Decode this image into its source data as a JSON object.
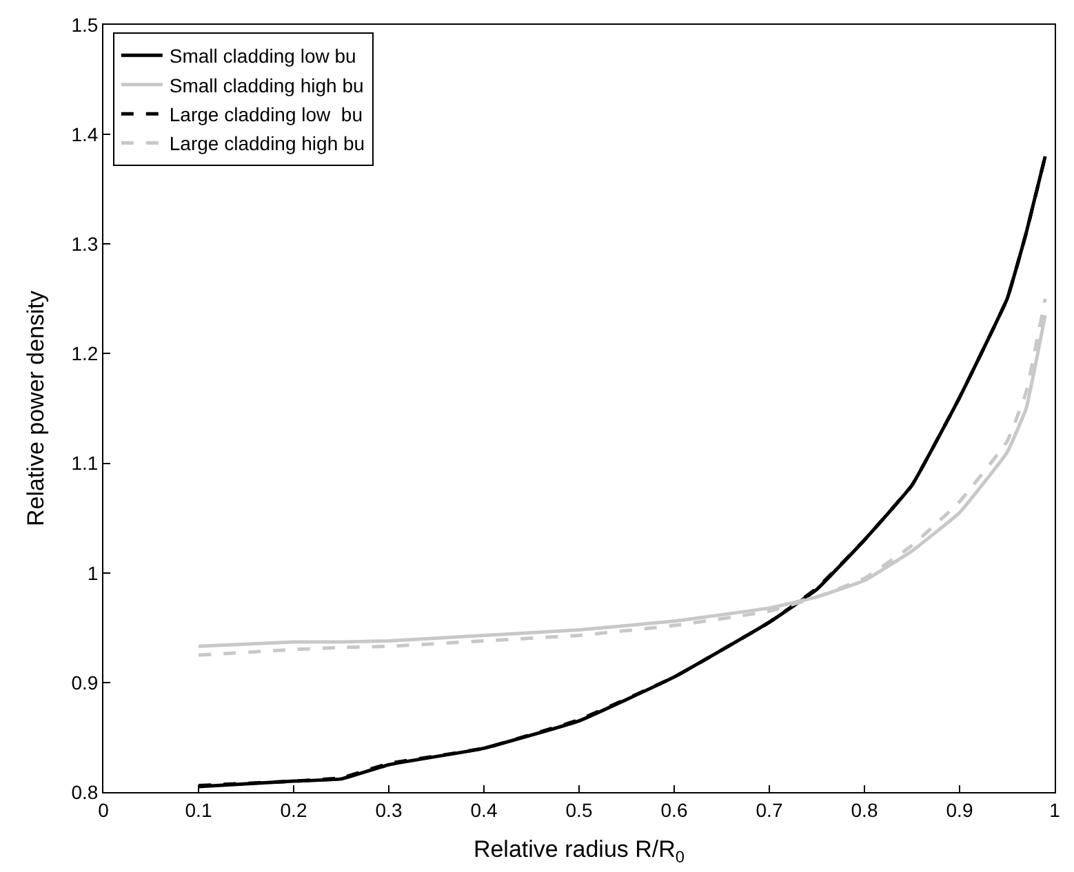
{
  "chart_data": {
    "type": "line",
    "xlabel": "Relative radius R/R$_{0}$",
    "ylabel": "Relative power density",
    "xlim": [
      0,
      1
    ],
    "xticks": [
      0,
      0.1,
      0.2,
      0.3,
      0.4,
      0.5,
      0.6,
      0.7,
      0.8,
      0.9,
      1
    ],
    "ylim": [
      0.8,
      1.5
    ],
    "yticks": [
      0.8,
      0.9,
      1,
      1.1,
      1.2,
      1.3,
      1.4,
      1.5
    ],
    "x": [
      0.1,
      0.2,
      0.25,
      0.3,
      0.4,
      0.5,
      0.6,
      0.7,
      0.75,
      0.8,
      0.85,
      0.9,
      0.95,
      0.97,
      0.99
    ],
    "series": [
      {
        "name": "Small cladding low bu",
        "color": "#000000",
        "line_style": "solid",
        "values": [
          0.805,
          0.81,
          0.812,
          0.825,
          0.84,
          0.865,
          0.905,
          0.955,
          0.985,
          1.03,
          1.08,
          1.16,
          1.25,
          1.31,
          1.38
        ]
      },
      {
        "name": "Small cladding high bu",
        "color": "#c8c8c8",
        "line_style": "solid",
        "values": [
          0.933,
          0.937,
          0.937,
          0.938,
          0.943,
          0.948,
          0.956,
          0.968,
          0.978,
          0.993,
          1.02,
          1.055,
          1.11,
          1.15,
          1.235
        ]
      },
      {
        "name": "Large cladding low  bu",
        "color": "#000000",
        "line_style": "dashed",
        "values": [
          0.806,
          0.81,
          0.813,
          0.826,
          0.84,
          0.866,
          0.905,
          0.955,
          0.986,
          1.03,
          1.08,
          1.16,
          1.25,
          1.31,
          1.38
        ]
      },
      {
        "name": "Large cladding high bu",
        "color": "#c8c8c8",
        "line_style": "dashed",
        "values": [
          0.925,
          0.93,
          0.932,
          0.933,
          0.938,
          0.943,
          0.952,
          0.965,
          0.978,
          0.995,
          1.025,
          1.065,
          1.12,
          1.165,
          1.25
        ]
      }
    ],
    "legend": "top left",
    "marker": "none"
  }
}
